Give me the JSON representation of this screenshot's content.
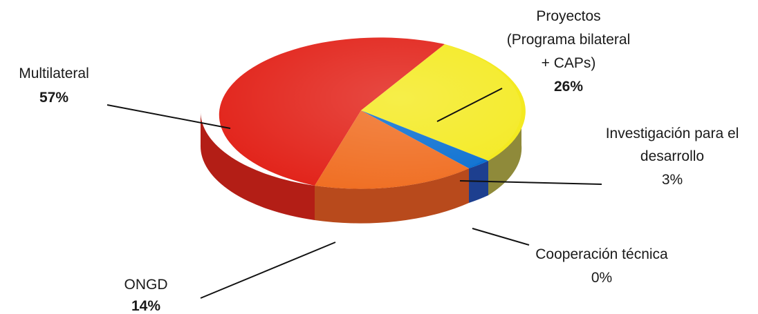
{
  "chart_data": {
    "type": "pie",
    "style": "3d",
    "slices": [
      {
        "key": "multilateral",
        "label": "Multilateral",
        "value": 57,
        "value_label": "57%",
        "color": "#e2231a",
        "bold": true
      },
      {
        "key": "proyectos",
        "label_lines": [
          "Proyectos",
          "(Programa bilateral",
          "+ CAPs)"
        ],
        "value": 26,
        "value_label": "26%",
        "color": "#f4ea21",
        "bold": true
      },
      {
        "key": "investigacion",
        "label_lines": [
          "Investigación para el",
          "desarrollo"
        ],
        "value": 3,
        "value_label": "3%",
        "color": "#0a6fd1",
        "bold": false
      },
      {
        "key": "cooperacion",
        "label": "Cooperación técnica",
        "value": 0,
        "value_label": "0%",
        "color": "#7a7a7a",
        "bold": false
      },
      {
        "key": "ongd",
        "label": "ONGD",
        "value": 14,
        "value_label": "14%",
        "color": "#f06e22",
        "bold": true
      }
    ]
  }
}
